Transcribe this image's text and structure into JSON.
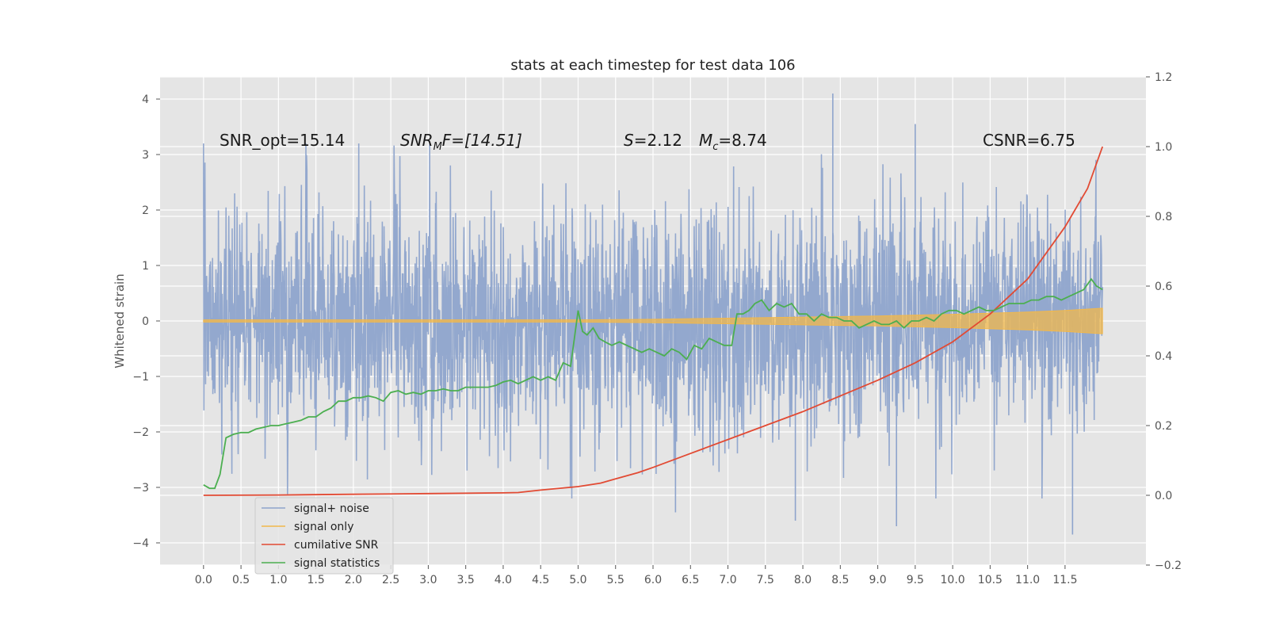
{
  "chart_data": {
    "type": "line",
    "title": "stats at each timestep for test data 106",
    "ylabel": "Whitened strain",
    "xlabel": "",
    "xlim": [
      -0.58,
      12.58
    ],
    "ylim": [
      -4.4,
      4.4
    ],
    "y2lim": [
      -0.2,
      1.2
    ],
    "grid": true,
    "x_ticks": [
      "0.0",
      "0.5",
      "1.0",
      "1.5",
      "2.0",
      "2.5",
      "3.0",
      "3.5",
      "4.0",
      "4.5",
      "5.0",
      "5.5",
      "6.0",
      "6.5",
      "7.0",
      "7.5",
      "8.0",
      "8.5",
      "9.0",
      "9.5",
      "10.0",
      "10.5",
      "11.0",
      "11.5"
    ],
    "y_ticks": [
      "4",
      "3",
      "2",
      "1",
      "0",
      "−1",
      "−2",
      "−3",
      "−4"
    ],
    "y2_ticks": [
      "1.2",
      "1.0",
      "0.8",
      "0.6",
      "0.4",
      "0.2",
      "0.0",
      "−0.2"
    ],
    "annotations": {
      "snr_opt": "SNR_opt=15.14",
      "snr_mf_main": "SNR",
      "snr_mf_sub": "M",
      "snr_mf_rest": "F=[14.51]",
      "s_label": "S",
      "s_value": "=2.12",
      "mc_main": "M",
      "mc_sub": "c",
      "mc_value": "=8.74",
      "csnr": "CSNR=6.75"
    },
    "legend": {
      "placement": "lower-left",
      "items": [
        {
          "label": "signal+ noise",
          "color": "#8ea4cc"
        },
        {
          "label": "signal only",
          "color": "#f2b84b"
        },
        {
          "label": "cumilative SNR",
          "color": "#e24a33"
        },
        {
          "label": "signal statistics",
          "color": "#4caf50"
        }
      ]
    },
    "series": [
      {
        "name": "signal+ noise",
        "axis": "left",
        "color": "#8ea4cc",
        "x_range": [
          0.0,
          12.0
        ],
        "amplitude_std": 1.0,
        "notable_peaks": [
          {
            "x": 8.4,
            "y": 4.1
          },
          {
            "x": 9.5,
            "y": 3.55
          },
          {
            "x": 11.6,
            "y": -3.85
          },
          {
            "x": 9.25,
            "y": -3.7
          },
          {
            "x": 7.9,
            "y": -3.6
          },
          {
            "x": 6.3,
            "y": -3.45
          }
        ]
      },
      {
        "name": "signal only",
        "axis": "left",
        "color": "#f2b84b",
        "x": [
          0,
          5.0,
          6.0,
          7.0,
          8.0,
          9.0,
          10.0,
          11.0,
          11.5,
          12.0
        ],
        "envelope": [
          0.02,
          0.02,
          0.03,
          0.05,
          0.07,
          0.09,
          0.12,
          0.16,
          0.19,
          0.23
        ]
      },
      {
        "name": "cumilative SNR",
        "axis": "right",
        "color": "#e24a33",
        "x": [
          0.0,
          1.0,
          2.0,
          3.0,
          4.0,
          4.2,
          4.5,
          5.0,
          5.3,
          5.5,
          5.8,
          6.0,
          6.5,
          7.0,
          7.5,
          8.0,
          8.5,
          9.0,
          9.5,
          10.0,
          10.5,
          11.0,
          11.5,
          11.8,
          12.0
        ],
        "values": [
          0.0,
          0.001,
          0.003,
          0.005,
          0.007,
          0.008,
          0.015,
          0.025,
          0.035,
          0.047,
          0.065,
          0.08,
          0.12,
          0.16,
          0.2,
          0.24,
          0.285,
          0.33,
          0.38,
          0.44,
          0.52,
          0.62,
          0.77,
          0.88,
          1.0
        ]
      },
      {
        "name": "signal statistics",
        "axis": "right",
        "color": "#4caf50",
        "x": [
          0.0,
          0.08,
          0.15,
          0.22,
          0.3,
          0.4,
          0.5,
          0.6,
          0.7,
          0.8,
          0.9,
          1.0,
          1.1,
          1.2,
          1.3,
          1.4,
          1.5,
          1.6,
          1.7,
          1.8,
          1.9,
          2.0,
          2.1,
          2.2,
          2.3,
          2.4,
          2.5,
          2.6,
          2.7,
          2.8,
          2.9,
          3.0,
          3.1,
          3.2,
          3.3,
          3.4,
          3.5,
          3.6,
          3.7,
          3.8,
          3.9,
          4.0,
          4.1,
          4.2,
          4.3,
          4.4,
          4.5,
          4.6,
          4.7,
          4.8,
          4.9,
          5.0,
          5.06,
          5.12,
          5.2,
          5.28,
          5.36,
          5.45,
          5.55,
          5.65,
          5.75,
          5.85,
          5.95,
          6.05,
          6.15,
          6.25,
          6.35,
          6.45,
          6.55,
          6.65,
          6.75,
          6.85,
          6.95,
          7.05,
          7.12,
          7.2,
          7.28,
          7.36,
          7.45,
          7.55,
          7.65,
          7.75,
          7.85,
          7.95,
          8.05,
          8.15,
          8.25,
          8.35,
          8.45,
          8.55,
          8.65,
          8.75,
          8.85,
          8.95,
          9.05,
          9.15,
          9.25,
          9.35,
          9.45,
          9.55,
          9.65,
          9.75,
          9.85,
          9.95,
          10.05,
          10.15,
          10.25,
          10.35,
          10.45,
          10.55,
          10.65,
          10.75,
          10.85,
          10.95,
          11.05,
          11.15,
          11.25,
          11.35,
          11.45,
          11.55,
          11.65,
          11.75,
          11.85,
          11.92,
          12.0
        ],
        "values": [
          0.03,
          0.02,
          0.02,
          0.06,
          0.165,
          0.175,
          0.18,
          0.18,
          0.19,
          0.195,
          0.2,
          0.2,
          0.205,
          0.21,
          0.215,
          0.225,
          0.225,
          0.24,
          0.25,
          0.27,
          0.27,
          0.28,
          0.28,
          0.285,
          0.28,
          0.27,
          0.295,
          0.3,
          0.29,
          0.295,
          0.29,
          0.3,
          0.3,
          0.305,
          0.3,
          0.3,
          0.31,
          0.31,
          0.31,
          0.31,
          0.315,
          0.325,
          0.33,
          0.32,
          0.33,
          0.34,
          0.33,
          0.34,
          0.33,
          0.38,
          0.37,
          0.53,
          0.47,
          0.46,
          0.48,
          0.45,
          0.44,
          0.43,
          0.44,
          0.43,
          0.42,
          0.41,
          0.42,
          0.41,
          0.4,
          0.42,
          0.41,
          0.39,
          0.43,
          0.42,
          0.45,
          0.44,
          0.43,
          0.43,
          0.52,
          0.52,
          0.53,
          0.55,
          0.56,
          0.53,
          0.55,
          0.54,
          0.55,
          0.52,
          0.52,
          0.5,
          0.52,
          0.51,
          0.51,
          0.5,
          0.5,
          0.48,
          0.49,
          0.5,
          0.49,
          0.49,
          0.5,
          0.48,
          0.5,
          0.5,
          0.51,
          0.5,
          0.52,
          0.53,
          0.53,
          0.52,
          0.53,
          0.54,
          0.53,
          0.53,
          0.54,
          0.55,
          0.55,
          0.55,
          0.56,
          0.56,
          0.57,
          0.57,
          0.56,
          0.57,
          0.58,
          0.59,
          0.62,
          0.6,
          0.59
        ]
      }
    ]
  }
}
